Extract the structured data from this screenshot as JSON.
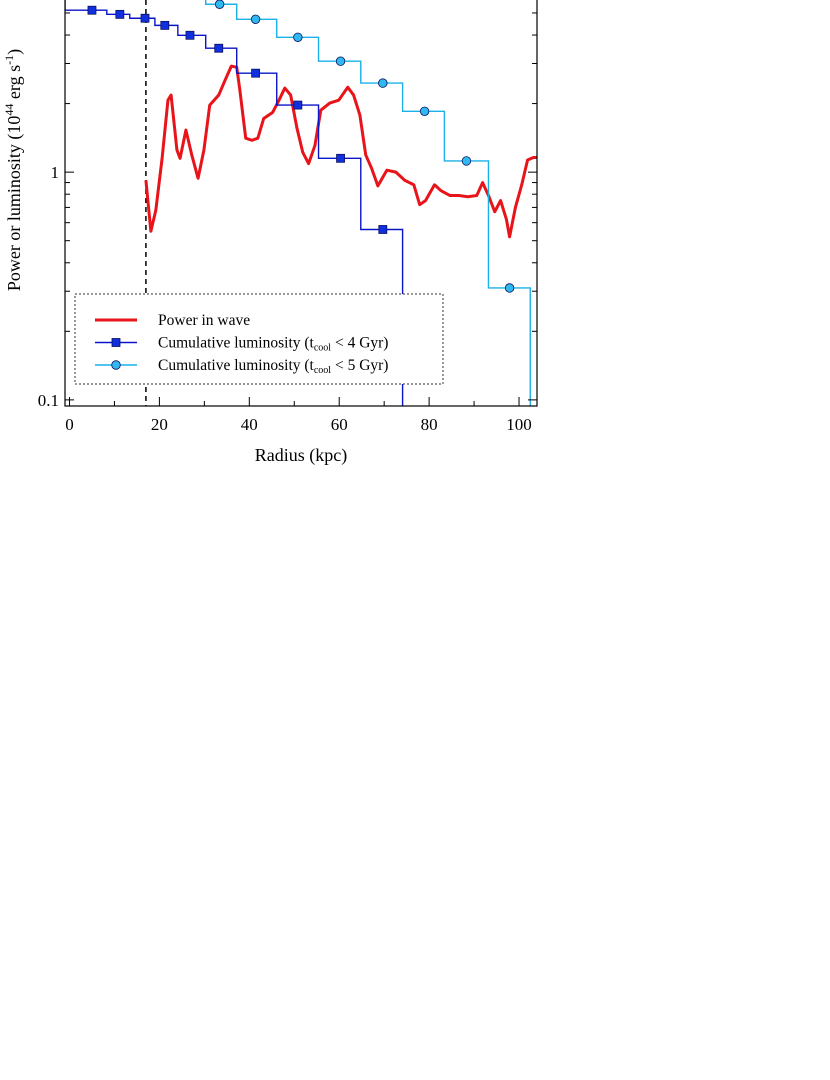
{
  "chart_data": {
    "type": "line",
    "x_label": "Radius (kpc)",
    "y_label": [
      "Power or luminosity (10",
      "44",
      " erg s",
      "-1",
      ")"
    ],
    "log_y": true,
    "xlim": [
      -1,
      104
    ],
    "ylim": [
      0.094,
      5.7
    ],
    "xticks": [
      0,
      20,
      40,
      60,
      80,
      100
    ],
    "xminorticks": [
      10,
      30,
      50,
      70,
      90
    ],
    "yticks": [
      0.1,
      1
    ],
    "yminorticks": [
      0.2,
      0.3,
      0.4,
      0.5,
      0.6,
      0.7,
      0.8,
      0.9,
      2,
      3,
      4,
      5
    ],
    "vline": 17,
    "legend": "lower left",
    "series": [
      {
        "name": [
          "Power in wave"
        ],
        "color": "#e8141a",
        "marker": "none",
        "x": [
          17.0,
          18.1,
          19.2,
          20.6,
          21.9,
          22.6,
          23.9,
          24.6,
          25.9,
          27.2,
          28.6,
          29.9,
          31.2,
          33.2,
          34.6,
          36.0,
          37.2,
          37.9,
          39.2,
          40.6,
          41.9,
          43.2,
          45.2,
          46.6,
          47.9,
          49.2,
          50.6,
          51.9,
          53.2,
          54.6,
          55.9,
          57.9,
          59.9,
          61.9,
          63.2,
          64.6,
          65.9,
          67.2,
          68.6,
          70.6,
          72.6,
          74.6,
          76.6,
          77.9,
          79.2,
          81.2,
          82.6,
          84.6,
          86.6,
          88.6,
          90.6,
          91.9,
          93.2,
          94.6,
          95.9,
          97.2,
          97.9,
          99.2,
          100.6,
          101.9,
          103.2,
          103.9
        ],
        "values": [
          0.92,
          0.55,
          0.68,
          1.15,
          2.07,
          2.18,
          1.25,
          1.15,
          1.53,
          1.19,
          0.94,
          1.25,
          1.97,
          2.18,
          2.53,
          2.92,
          2.89,
          2.29,
          1.41,
          1.38,
          1.41,
          1.72,
          1.83,
          2.07,
          2.34,
          2.18,
          1.56,
          1.22,
          1.09,
          1.31,
          1.87,
          2.01,
          2.07,
          2.36,
          2.18,
          1.78,
          1.19,
          1.04,
          0.87,
          1.02,
          1.0,
          0.92,
          0.88,
          0.72,
          0.75,
          0.88,
          0.83,
          0.79,
          0.79,
          0.78,
          0.79,
          0.9,
          0.79,
          0.67,
          0.75,
          0.62,
          0.52,
          0.7,
          0.88,
          1.13,
          1.16,
          1.16
        ]
      },
      {
        "name": [
          "Cumulative luminosity (t",
          "cool",
          " < 4 Gyr)"
        ],
        "color": "#0a14c8",
        "marker": "square",
        "marker_color": "#1030e0",
        "x": [
          5.0,
          11.2,
          16.8,
          21.2,
          26.8,
          33.2,
          41.4,
          50.8,
          60.3,
          69.7
        ],
        "values": [
          5.14,
          4.93,
          4.74,
          4.41,
          3.99,
          3.5,
          2.72,
          1.97,
          1.15,
          0.56
        ],
        "bins": [
          -1,
          8.3,
          13.4,
          19.0,
          24.1,
          30.3,
          37.2,
          46.1,
          55.4,
          64.8,
          74.1
        ]
      },
      {
        "name": [
          "Cumulative luminosity (t",
          "cool",
          " < 5 Gyr)"
        ],
        "color": "#1ab0e8",
        "marker": "circle",
        "marker_color": "#30b8f0",
        "x": [
          33.4,
          41.4,
          50.8,
          60.3,
          69.7,
          79.0,
          88.3,
          97.9
        ],
        "values": [
          5.46,
          4.69,
          3.91,
          3.07,
          2.46,
          1.85,
          1.12,
          0.31
        ],
        "bins": [
          30.3,
          37.2,
          46.1,
          55.4,
          64.8,
          74.1,
          83.4,
          93.2,
          102.5
        ]
      }
    ]
  }
}
